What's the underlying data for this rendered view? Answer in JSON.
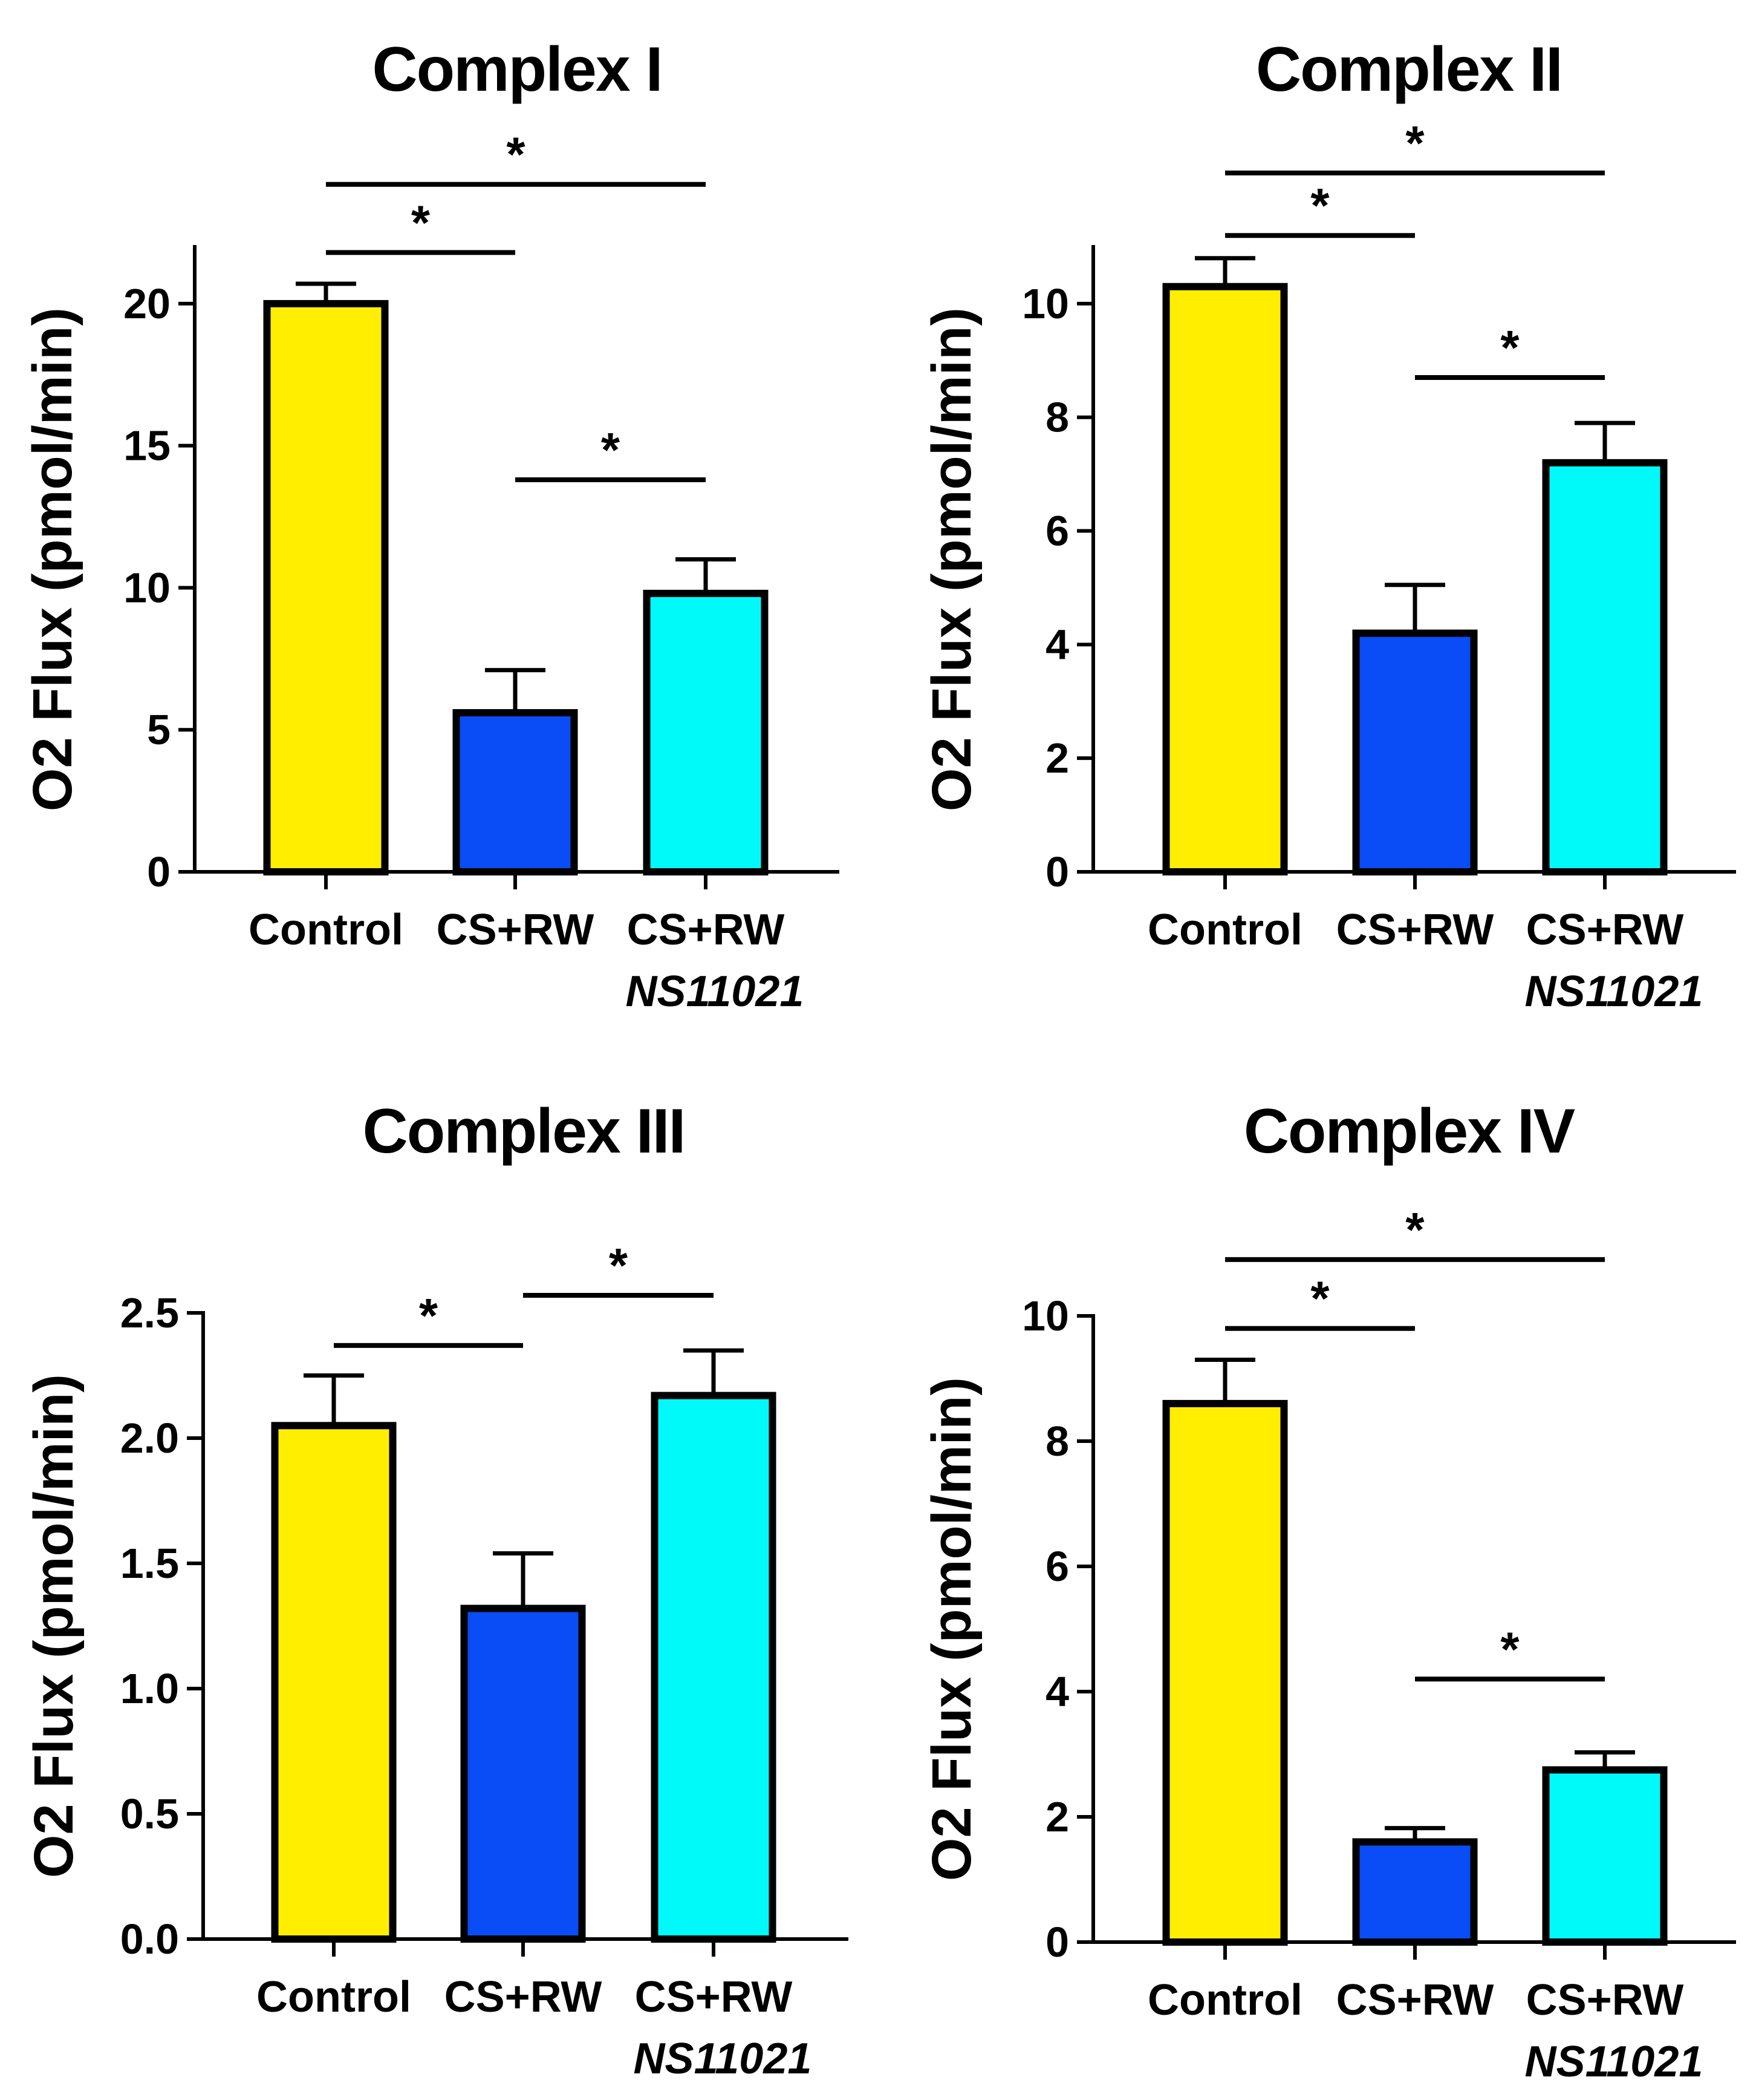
{
  "figure": {
    "colors": {
      "control": "#ffee00",
      "cs_rw": "#0a4cf5",
      "cs_rw_ns": "#00fafa",
      "axis": "#000000"
    }
  },
  "chart_data": [
    {
      "type": "bar",
      "title": "Complex I",
      "ylabel": "O2 Flux  (pmol/min)",
      "xlabel": "",
      "categories": [
        "Control",
        "CS+RW",
        "CS+RW"
      ],
      "category_sublabels": [
        "",
        "",
        "NS11021"
      ],
      "values": [
        20.0,
        5.6,
        9.8
      ],
      "errors": [
        0.7,
        1.5,
        1.2
      ],
      "ylim": [
        0,
        22
      ],
      "yticks": [
        0,
        5,
        10,
        15,
        20
      ],
      "ytick_labels": [
        "0",
        "5",
        "10",
        "15",
        "20"
      ],
      "significance": [
        {
          "from": 0,
          "to": 1,
          "level": 21.8,
          "label": "*"
        },
        {
          "from": 0,
          "to": 2,
          "level": 24.2,
          "label": "*"
        },
        {
          "from": 1,
          "to": 2,
          "level": 13.8,
          "label": "*"
        }
      ]
    },
    {
      "type": "bar",
      "title": "Complex II",
      "ylabel": "O2 Flux  (pmol/min)",
      "xlabel": "",
      "categories": [
        "Control",
        "CS+RW",
        "CS+RW"
      ],
      "category_sublabels": [
        "",
        "",
        "NS11021"
      ],
      "values": [
        10.3,
        4.2,
        7.2
      ],
      "errors": [
        0.5,
        0.85,
        0.7
      ],
      "ylim": [
        0,
        11
      ],
      "yticks": [
        0,
        2,
        4,
        6,
        8,
        10
      ],
      "ytick_labels": [
        "0",
        "2",
        "4",
        "6",
        "8",
        "10"
      ],
      "significance": [
        {
          "from": 0,
          "to": 1,
          "level": 11.2,
          "label": "*"
        },
        {
          "from": 0,
          "to": 2,
          "level": 12.3,
          "label": "*"
        },
        {
          "from": 1,
          "to": 2,
          "level": 8.7,
          "label": "*"
        }
      ]
    },
    {
      "type": "bar",
      "title": "Complex III",
      "ylabel": "O2 Flux  (pmol/min)",
      "xlabel": "",
      "categories": [
        "Control",
        "CS+RW",
        "CS+RW"
      ],
      "category_sublabels": [
        "",
        "",
        "NS11021"
      ],
      "values": [
        2.05,
        1.32,
        2.17
      ],
      "errors": [
        0.2,
        0.22,
        0.18
      ],
      "ylim": [
        0,
        2.5
      ],
      "yticks": [
        0,
        0.5,
        1.0,
        1.5,
        2.0,
        2.5
      ],
      "ytick_labels": [
        "0.0",
        "0.5",
        "1.0",
        "1.5",
        "2.0",
        "2.5"
      ],
      "significance": [
        {
          "from": 0,
          "to": 1,
          "level": 2.37,
          "label": "*"
        },
        {
          "from": 1,
          "to": 2,
          "level": 2.57,
          "label": "*"
        }
      ]
    },
    {
      "type": "bar",
      "title": "Complex IV",
      "ylabel": "O2 Flux  (pmol/min)",
      "xlabel": "",
      "categories": [
        "Control",
        "CS+RW",
        "CS+RW"
      ],
      "category_sublabels": [
        "",
        "",
        "NS11021"
      ],
      "values": [
        8.6,
        1.6,
        2.75
      ],
      "errors": [
        0.7,
        0.22,
        0.28
      ],
      "ylim": [
        0,
        10
      ],
      "yticks": [
        0,
        2,
        4,
        6,
        8,
        10
      ],
      "ytick_labels": [
        "0",
        "2",
        "4",
        "6",
        "8",
        "10"
      ],
      "significance": [
        {
          "from": 0,
          "to": 1,
          "level": 9.8,
          "label": "*"
        },
        {
          "from": 0,
          "to": 2,
          "level": 10.9,
          "label": "*"
        },
        {
          "from": 1,
          "to": 2,
          "level": 4.2,
          "label": "*"
        }
      ]
    }
  ]
}
